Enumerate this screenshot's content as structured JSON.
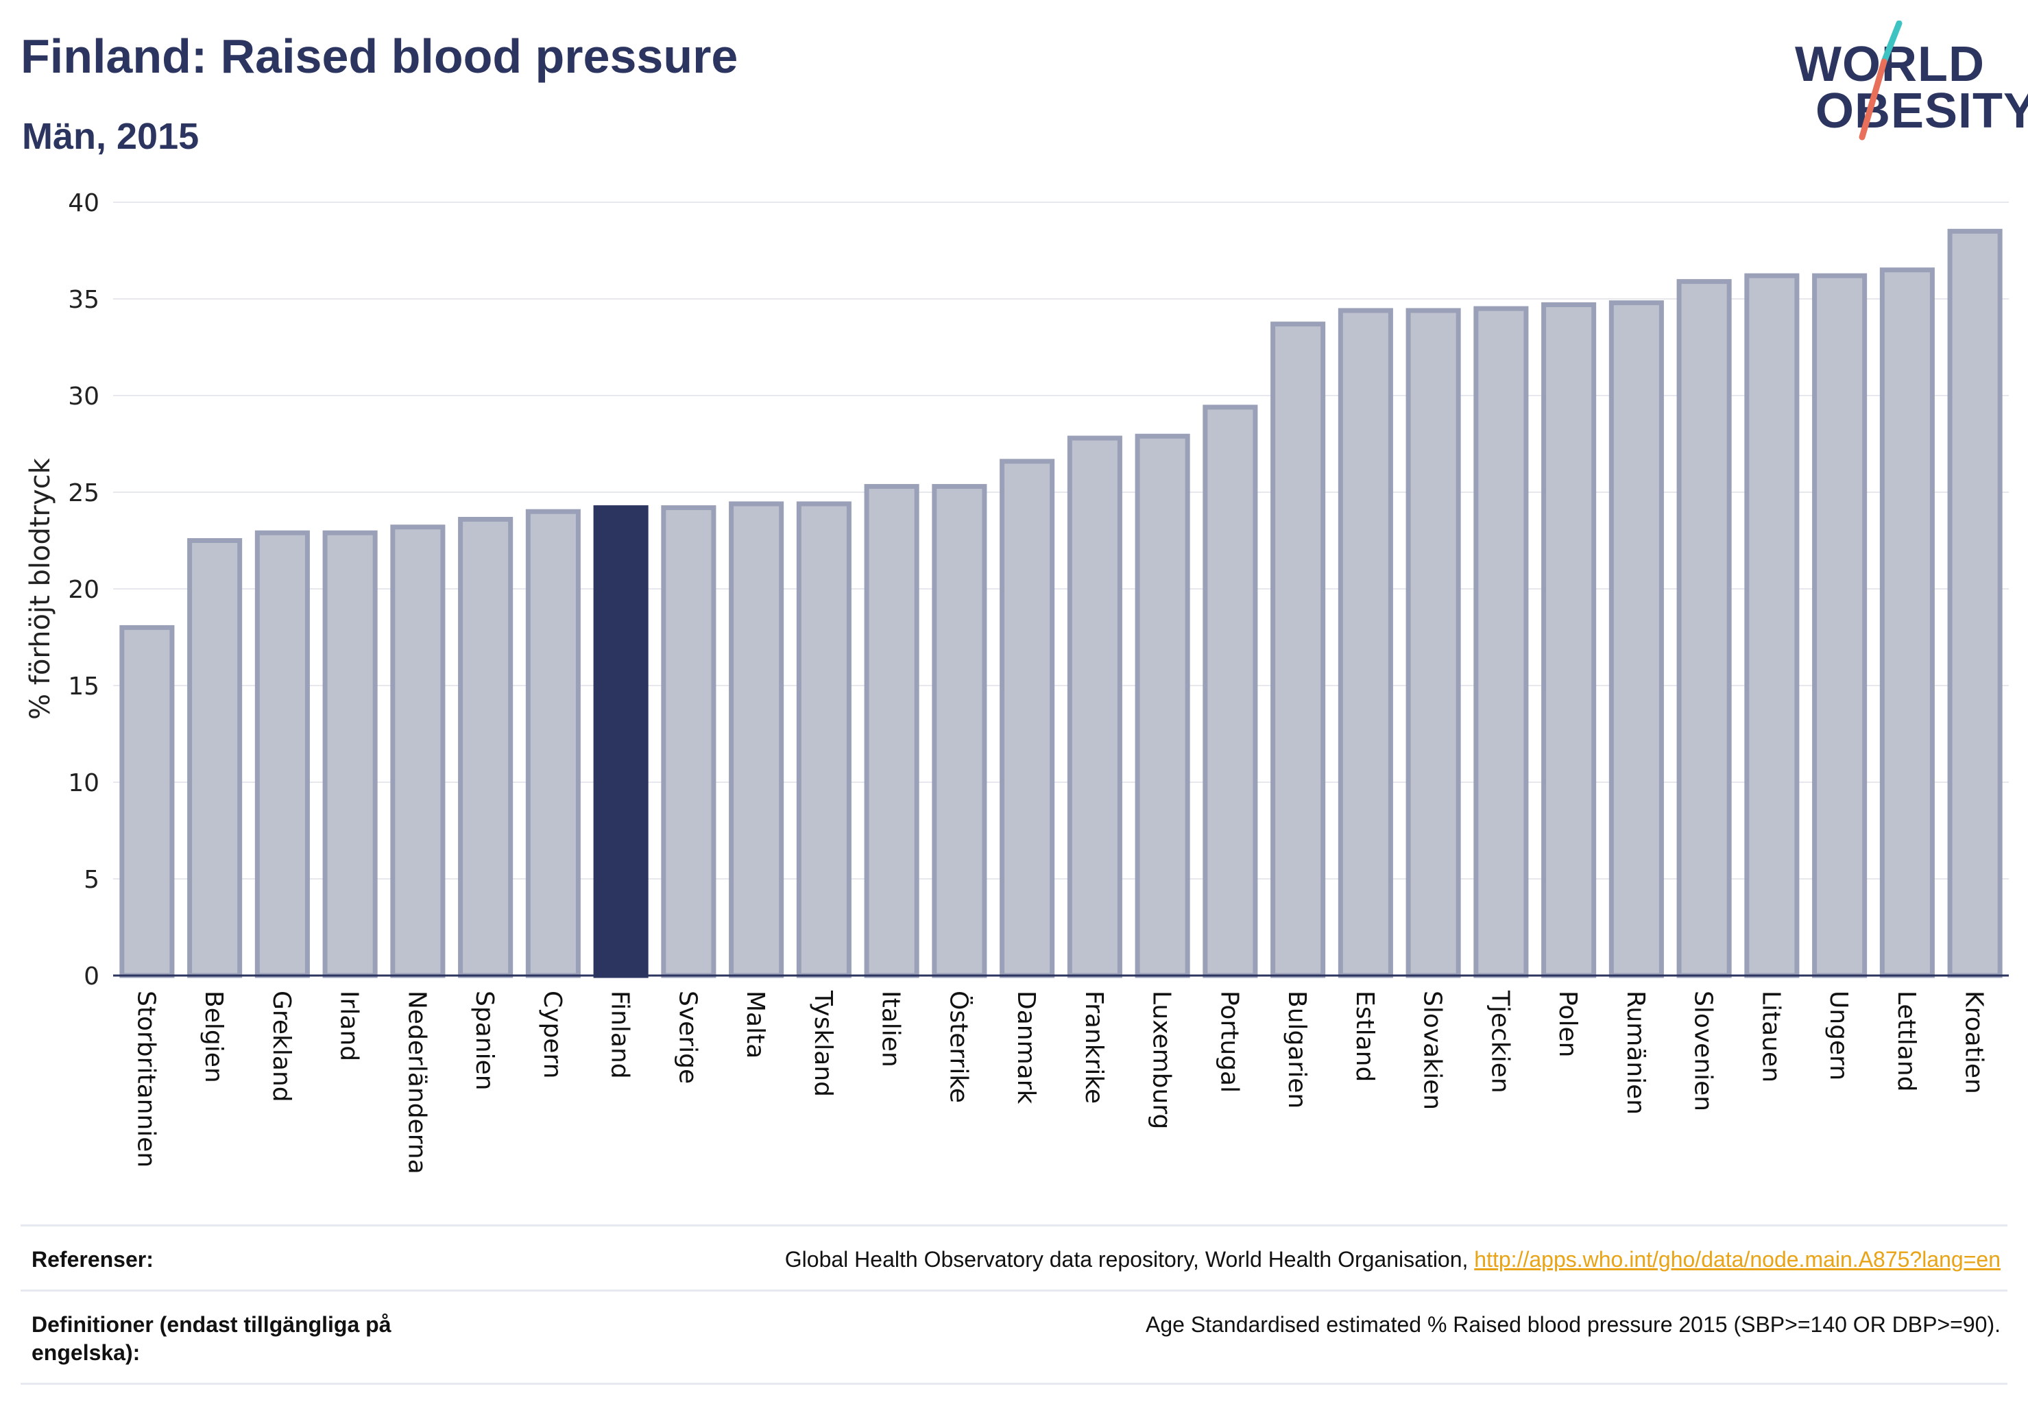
{
  "header": {
    "title": "Finland: Raised blood pressure",
    "subtitle": "Män, 2015"
  },
  "logo": {
    "line1": "WORLD",
    "line2": "OBESITY",
    "colors": {
      "text": "#2c3560",
      "slash_top": "#3ec3c3",
      "slash_bottom": "#e8705a"
    }
  },
  "colors": {
    "bar": "#bec1ce",
    "bar_border": "#9aa0b8",
    "highlight": "#2c3560",
    "grid": "#e6e8ee",
    "axis": "#2c3560"
  },
  "chart_data": {
    "type": "bar",
    "title": "",
    "xlabel": "",
    "ylabel": "% förhöjt blodtryck",
    "ylim": [
      0,
      40
    ],
    "yticks": [
      0,
      5,
      10,
      15,
      20,
      25,
      30,
      35,
      40
    ],
    "grid": true,
    "highlight": "Finland",
    "categories": [
      "Storbritannien",
      "Belgien",
      "Grekland",
      "Irland",
      "Nederländerna",
      "Spanien",
      "Cypern",
      "Finland",
      "Sverige",
      "Malta",
      "Tyskland",
      "Italien",
      "Österrike",
      "Danmark",
      "Frankrike",
      "Luxemburg",
      "Portugal",
      "Bulgarien",
      "Estland",
      "Slovakien",
      "Tjeckien",
      "Polen",
      "Rumänien",
      "Slovenien",
      "Litauen",
      "Ungern",
      "Lettland",
      "Kroatien"
    ],
    "values": [
      18.0,
      22.5,
      22.9,
      22.9,
      23.2,
      23.6,
      24.0,
      24.2,
      24.2,
      24.4,
      24.4,
      25.3,
      25.3,
      26.6,
      27.8,
      27.9,
      29.4,
      33.7,
      34.4,
      34.4,
      34.5,
      34.7,
      34.8,
      35.9,
      36.2,
      36.2,
      36.5,
      38.5
    ]
  },
  "footer": {
    "references_label": "Referenser:",
    "references_text": "Global Health Observatory data repository, World Health Organisation, ",
    "references_link": "http://apps.who.int/gho/data/node.main.A875?lang=en",
    "definitions_label": "Definitioner (endast tillgängliga på engelska):",
    "definitions_text": "Age Standardised estimated % Raised blood pressure 2015 (SBP>=140 OR DBP>=90)."
  }
}
